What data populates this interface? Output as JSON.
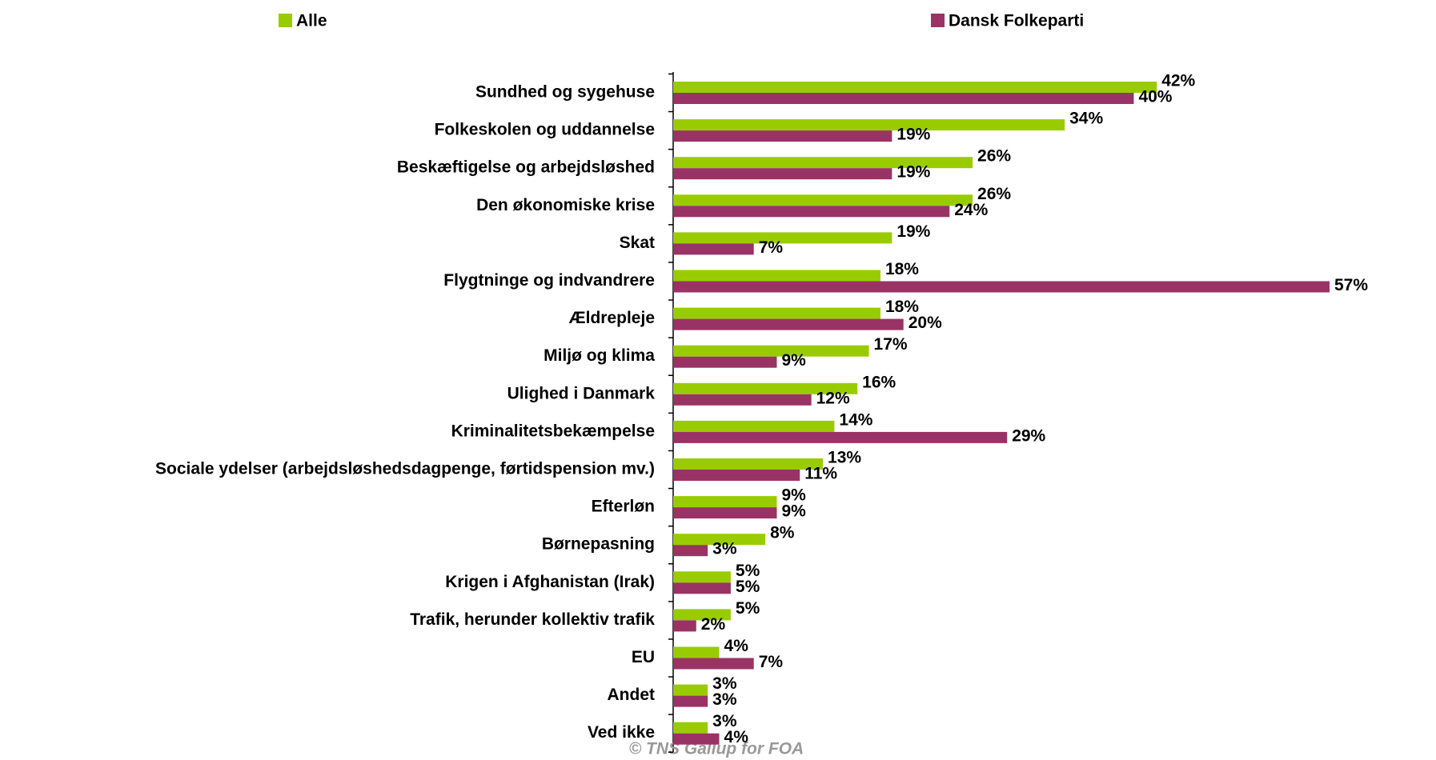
{
  "chart_data": {
    "type": "barh",
    "categories": [
      "Sundhed og sygehuse",
      "Folkeskolen og uddannelse",
      "Beskæftigelse og arbejdsløshed",
      "Den økonomiske krise",
      "Skat",
      "Flygtninge og indvandrere",
      "Ældrepleje",
      "Miljø og klima",
      "Ulighed i Danmark",
      "Kriminalitetsbekæmpelse",
      "Sociale ydelser (arbejdsløshedsdagpenge, førtidspension mv.)",
      "Efterløn",
      "Børnepasning",
      "Krigen i Afghanistan (Irak)",
      "Trafik, herunder kollektiv trafik",
      "EU",
      "Andet",
      "Ved ikke"
    ],
    "series": [
      {
        "name": "Alle",
        "color": "#99cc00",
        "values": [
          42,
          34,
          26,
          26,
          19,
          18,
          18,
          17,
          16,
          14,
          13,
          9,
          8,
          5,
          5,
          4,
          3,
          3
        ],
        "value_labels": [
          "42%",
          "34%",
          "26%",
          "26%",
          "19%",
          "18%",
          "18%",
          "17%",
          "16%",
          "14%",
          "13%",
          "9%",
          "8%",
          "5%",
          "5%",
          "4%",
          "3%",
          "3%"
        ]
      },
      {
        "name": "Dansk Folkeparti",
        "color": "#993366",
        "values": [
          40,
          19,
          19,
          24,
          7,
          57,
          20,
          9,
          12,
          29,
          11,
          9,
          3,
          5,
          2,
          7,
          3,
          4
        ],
        "value_labels": [
          "40%",
          "19%",
          "19%",
          "24%",
          "7%",
          "57%",
          "20%",
          "9%",
          "12%",
          "29%",
          "11%",
          "9%",
          "3%",
          "5%",
          "2%",
          "7%",
          "3%",
          "4%"
        ]
      }
    ],
    "source": "© TNS Gallup for FOA"
  }
}
